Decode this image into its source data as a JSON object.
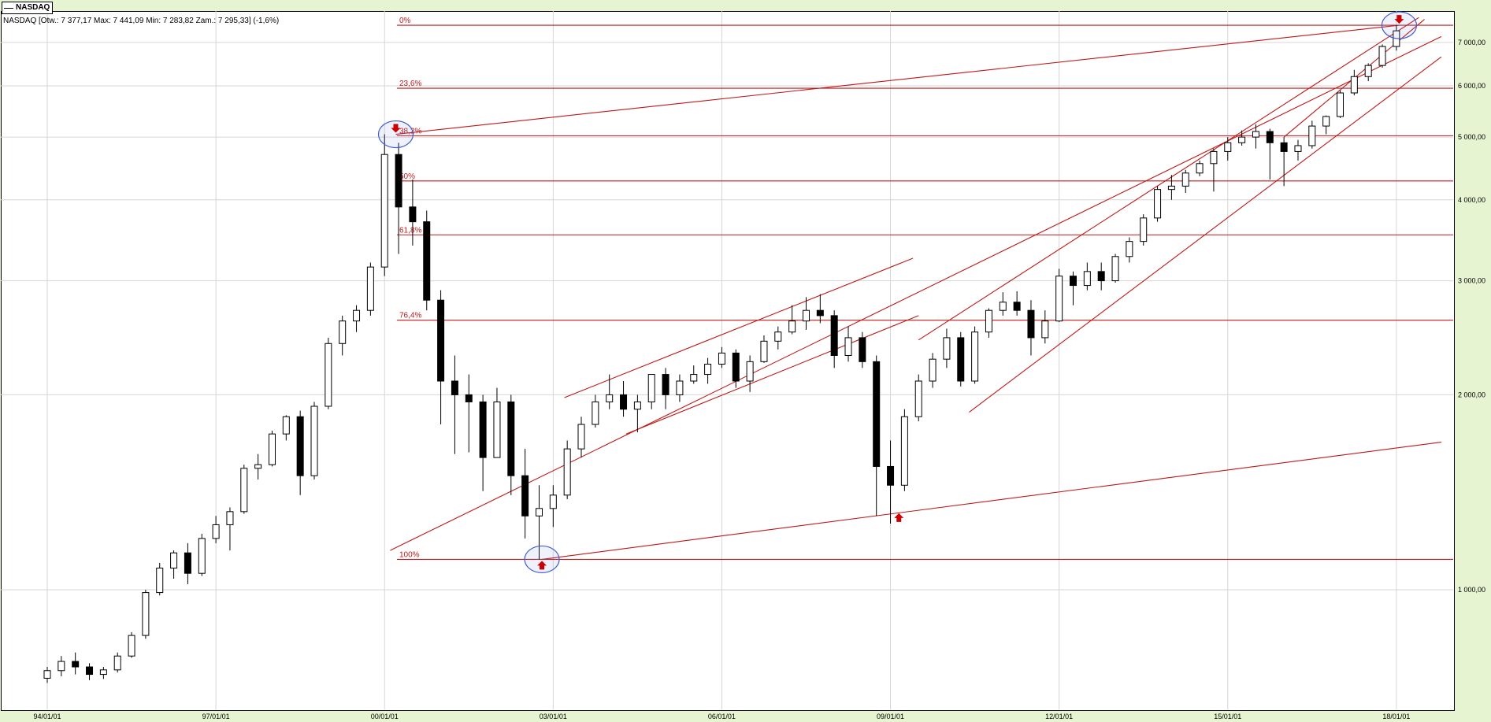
{
  "legend": {
    "series": "NASDAQ"
  },
  "info_text": "NASDAQ [Otw.: 7 377,17  Max: 7 441,09  Min: 7 283,82  Zam.: 7 295,33] (-1,6%)",
  "colors": {
    "background": "#e6f4d2",
    "plot": "#ffffff",
    "trend": "#c01818",
    "grid": "#d6d6d6",
    "marker": "#3d5bd3",
    "arrow": "#cc0000",
    "candle": "#000000"
  },
  "chart_data": {
    "type": "candlestick",
    "title": "",
    "xlabel": "",
    "ylabel": "",
    "yscale": "log",
    "ylim": [
      650,
      7600
    ],
    "xlim": [
      1993.6,
      2018.8
    ],
    "x_tick_labels": [
      "94/01/01",
      "97/01/01",
      "00/01/01",
      "03/01/01",
      "06/01/01",
      "09/01/01",
      "12/01/01",
      "15/01/01",
      "18/01/01"
    ],
    "x_ticks": [
      1994,
      1997,
      2000,
      2003,
      2006,
      2009,
      2012,
      2015,
      2018
    ],
    "y_tick_labels": [
      "1 000,00",
      "2 000,00",
      "3 000,00",
      "4 000,00",
      "5 000,00",
      "6 000,00",
      "7 000,00"
    ],
    "y_ticks": [
      1000,
      2000,
      3000,
      4000,
      5000,
      6000,
      7000
    ],
    "fibonacci": {
      "high": 7441,
      "low": 1114,
      "levels": [
        {
          "label": "0%",
          "value": 7441
        },
        {
          "label": "23,6%",
          "value": 5948
        },
        {
          "label": "38,2%",
          "value": 5024
        },
        {
          "label": "50%",
          "value": 4278
        },
        {
          "label": "61,8%",
          "value": 3532
        },
        {
          "label": "76,4%",
          "value": 2607
        },
        {
          "label": "100%",
          "value": 1114
        }
      ]
    },
    "trend_lines": [
      {
        "from": [
          2000.2,
          5050
        ],
        "to": [
          2018.05,
          7441
        ]
      },
      {
        "from": [
          2002.8,
          1114
        ],
        "to": [
          2018.8,
          1690
        ]
      },
      {
        "from": [
          2000.1,
          1150
        ],
        "to": [
          2018.8,
          7150
        ]
      },
      {
        "from": [
          2003.2,
          1980
        ],
        "to": [
          2009.4,
          3250
        ]
      },
      {
        "from": [
          2004.3,
          1740
        ],
        "to": [
          2009.5,
          2650
        ]
      },
      {
        "from": [
          2009.5,
          2430
        ],
        "to": [
          2018.4,
          7650
        ]
      },
      {
        "from": [
          2010.4,
          1880
        ],
        "to": [
          2018.8,
          6650
        ]
      },
      {
        "from": [
          2016.0,
          5000
        ],
        "to": [
          2018.5,
          7600
        ]
      }
    ],
    "markers": [
      {
        "x": 2000.2,
        "y": 5050,
        "arrow": "down",
        "circled": true
      },
      {
        "x": 2002.8,
        "y": 1114,
        "arrow": "up",
        "circled": true
      },
      {
        "x": 2009.15,
        "y": 1320,
        "arrow": "up",
        "circled": false
      },
      {
        "x": 2018.05,
        "y": 7441,
        "arrow": "down",
        "circled": true
      }
    ],
    "candles": [
      [
        1994.0,
        730,
        760,
        718,
        750
      ],
      [
        1994.25,
        750,
        790,
        735,
        775
      ],
      [
        1994.5,
        775,
        800,
        740,
        760
      ],
      [
        1994.75,
        760,
        770,
        725,
        740
      ],
      [
        1995.0,
        740,
        760,
        728,
        752
      ],
      [
        1995.25,
        752,
        800,
        745,
        790
      ],
      [
        1995.5,
        790,
        860,
        785,
        850
      ],
      [
        1995.75,
        850,
        1000,
        840,
        990
      ],
      [
        1996.0,
        990,
        1100,
        980,
        1080
      ],
      [
        1996.25,
        1080,
        1150,
        1040,
        1140
      ],
      [
        1996.5,
        1140,
        1180,
        1020,
        1060
      ],
      [
        1996.75,
        1060,
        1220,
        1050,
        1200
      ],
      [
        1997.0,
        1200,
        1300,
        1180,
        1260
      ],
      [
        1997.25,
        1260,
        1340,
        1150,
        1320
      ],
      [
        1997.5,
        1320,
        1560,
        1310,
        1540
      ],
      [
        1997.75,
        1540,
        1620,
        1480,
        1560
      ],
      [
        1998.0,
        1560,
        1760,
        1550,
        1740
      ],
      [
        1998.25,
        1740,
        1860,
        1700,
        1850
      ],
      [
        1998.5,
        1850,
        1890,
        1400,
        1500
      ],
      [
        1998.75,
        1500,
        1950,
        1480,
        1920
      ],
      [
        1999.0,
        1920,
        2450,
        1900,
        2400
      ],
      [
        1999.25,
        2400,
        2650,
        2300,
        2600
      ],
      [
        1999.5,
        2600,
        2750,
        2500,
        2700
      ],
      [
        1999.75,
        2700,
        3200,
        2650,
        3150
      ],
      [
        2000.0,
        3150,
        5050,
        3050,
        4700
      ],
      [
        2000.25,
        4700,
        4900,
        3300,
        3900
      ],
      [
        2000.5,
        3900,
        4300,
        3400,
        3700
      ],
      [
        2000.75,
        3700,
        3850,
        2700,
        2800
      ],
      [
        2001.0,
        2800,
        2900,
        1800,
        2100
      ],
      [
        2001.25,
        2100,
        2300,
        1620,
        2000
      ],
      [
        2001.5,
        2000,
        2150,
        1630,
        1950
      ],
      [
        2001.75,
        1950,
        2000,
        1420,
        1600
      ],
      [
        2002.0,
        1600,
        2050,
        1600,
        1950
      ],
      [
        2002.25,
        1950,
        2000,
        1400,
        1500
      ],
      [
        2002.5,
        1500,
        1650,
        1200,
        1300
      ],
      [
        2002.75,
        1300,
        1450,
        1114,
        1335
      ],
      [
        2003.0,
        1335,
        1450,
        1250,
        1400
      ],
      [
        2003.25,
        1400,
        1700,
        1380,
        1650
      ],
      [
        2003.5,
        1650,
        1850,
        1600,
        1800
      ],
      [
        2003.75,
        1800,
        2000,
        1780,
        1950
      ],
      [
        2004.0,
        1950,
        2150,
        1900,
        2000
      ],
      [
        2004.25,
        2000,
        2100,
        1850,
        1900
      ],
      [
        2004.5,
        1900,
        2000,
        1750,
        1950
      ],
      [
        2004.75,
        1950,
        2150,
        1900,
        2150
      ],
      [
        2005.0,
        2150,
        2200,
        1900,
        2000
      ],
      [
        2005.25,
        2000,
        2150,
        1950,
        2100
      ],
      [
        2005.5,
        2100,
        2220,
        2080,
        2150
      ],
      [
        2005.75,
        2150,
        2280,
        2080,
        2230
      ],
      [
        2006.0,
        2230,
        2370,
        2200,
        2320
      ],
      [
        2006.25,
        2320,
        2350,
        2050,
        2100
      ],
      [
        2006.5,
        2100,
        2300,
        2020,
        2250
      ],
      [
        2006.75,
        2250,
        2470,
        2240,
        2420
      ],
      [
        2007.0,
        2420,
        2550,
        2350,
        2500
      ],
      [
        2007.25,
        2500,
        2750,
        2480,
        2600
      ],
      [
        2007.5,
        2600,
        2830,
        2520,
        2700
      ],
      [
        2007.75,
        2700,
        2860,
        2580,
        2650
      ],
      [
        2008.0,
        2650,
        2700,
        2200,
        2300
      ],
      [
        2008.25,
        2300,
        2550,
        2250,
        2450
      ],
      [
        2008.5,
        2450,
        2500,
        2200,
        2250
      ],
      [
        2008.75,
        2250,
        2300,
        1300,
        1550
      ],
      [
        2009.0,
        1550,
        1700,
        1265,
        1450
      ],
      [
        2009.25,
        1450,
        1900,
        1420,
        1850
      ],
      [
        2009.5,
        1850,
        2150,
        1820,
        2100
      ],
      [
        2009.75,
        2100,
        2320,
        2050,
        2270
      ],
      [
        2010.0,
        2270,
        2530,
        2200,
        2450
      ],
      [
        2010.25,
        2450,
        2500,
        2060,
        2100
      ],
      [
        2010.5,
        2100,
        2550,
        2080,
        2500
      ],
      [
        2010.75,
        2500,
        2720,
        2450,
        2700
      ],
      [
        2011.0,
        2700,
        2880,
        2650,
        2780
      ],
      [
        2011.25,
        2780,
        2890,
        2650,
        2700
      ],
      [
        2011.5,
        2700,
        2800,
        2300,
        2450
      ],
      [
        2011.75,
        2450,
        2700,
        2400,
        2600
      ],
      [
        2012.0,
        2600,
        3130,
        2590,
        3050
      ],
      [
        2012.25,
        3050,
        3100,
        2750,
        2950
      ],
      [
        2012.5,
        2950,
        3200,
        2900,
        3100
      ],
      [
        2012.75,
        3100,
        3200,
        2900,
        3000
      ],
      [
        2013.0,
        3000,
        3300,
        2980,
        3270
      ],
      [
        2013.25,
        3270,
        3500,
        3200,
        3450
      ],
      [
        2013.5,
        3450,
        3800,
        3400,
        3750
      ],
      [
        2013.75,
        3750,
        4200,
        3700,
        4150
      ],
      [
        2014.0,
        4150,
        4370,
        4000,
        4200
      ],
      [
        2014.25,
        4200,
        4450,
        4100,
        4400
      ],
      [
        2014.5,
        4400,
        4600,
        4350,
        4550
      ],
      [
        2014.75,
        4550,
        4800,
        4120,
        4750
      ],
      [
        2015.0,
        4750,
        5000,
        4600,
        4900
      ],
      [
        2015.25,
        4900,
        5120,
        4850,
        5000
      ],
      [
        2015.5,
        5000,
        5230,
        4800,
        5100
      ],
      [
        2015.75,
        5100,
        5150,
        4300,
        4900
      ],
      [
        2016.0,
        4900,
        5000,
        4200,
        4750
      ],
      [
        2016.25,
        4750,
        4950,
        4600,
        4850
      ],
      [
        2016.5,
        4850,
        5300,
        4800,
        5200
      ],
      [
        2016.75,
        5200,
        5400,
        5050,
        5380
      ],
      [
        2017.0,
        5380,
        5900,
        5350,
        5850
      ],
      [
        2017.25,
        5850,
        6350,
        5800,
        6200
      ],
      [
        2017.5,
        6200,
        6500,
        6100,
        6450
      ],
      [
        2017.75,
        6450,
        6950,
        6400,
        6900
      ],
      [
        2018.0,
        6900,
        7441,
        6800,
        7295
      ]
    ]
  }
}
